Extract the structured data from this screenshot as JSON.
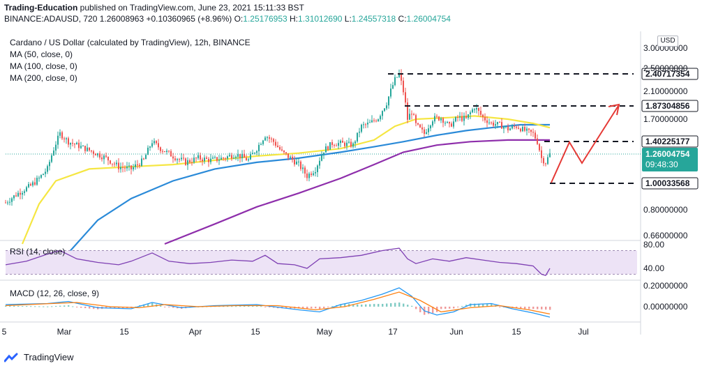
{
  "header": {
    "line1_publisher": "Trading-Education",
    "line1_rest": " published on TradingView.com, June 23, 2021 15:11:33 BST",
    "symbol": "BINANCE:ADAUSD, 720",
    "last": "1.26008963",
    "change": "+0.10360965 (+8.96%)",
    "o_label": "O:",
    "o_value": "1.25176953",
    "h_label": "H:",
    "h_value": "1.31012690",
    "l_label": "L:",
    "l_value": "1.24557318",
    "c_label": "C:",
    "c_value": "1.26004754"
  },
  "legend": {
    "title": "Cardano / US Dollar (calculated by TradingView), 12h, BINANCE",
    "ma50": "MA (50, close, 0)",
    "ma100": "MA (100, close, 0)",
    "ma200": "MA (200, close, 0)",
    "rsi": "RSI (14, close)",
    "macd": "MACD (12, 26, close, 9)"
  },
  "currency": "USD",
  "brand": "TradingView",
  "colors": {
    "up": "#26a69a",
    "down": "#ef5350",
    "ma50": "#f5e642",
    "ma100": "#2a8ad8",
    "ma200": "#8e2eab",
    "arrow": "#e53935",
    "rsi": "#7e3fb3",
    "macd": "#2196f3",
    "signal": "#ff7f0e",
    "price_badge": "#26a69a"
  },
  "chart_data": {
    "type": "candlestick",
    "title": "Cardano / US Dollar (calculated by TradingView), 12h, BINANCE",
    "y_ticks_main": [
      "3.00000000",
      "2.50000000",
      "2.10000000",
      "1.70000000",
      "1.00033568",
      "0.80000000",
      "0.66000000"
    ],
    "y_ticks_rsi": [
      "80.00",
      "40.00"
    ],
    "y_ticks_macd": [
      "0.20000000",
      "0.00000000"
    ],
    "x_ticks": [
      "5",
      "Mar",
      "15",
      "Apr",
      "15",
      "May",
      "17",
      "Jun",
      "15",
      "Jul"
    ],
    "levels": [
      {
        "label": "2.40717354",
        "value": 2.40717354
      },
      {
        "label": "1.87304856",
        "value": 1.87304856
      },
      {
        "label": "1.40225177",
        "value": 1.40225177
      },
      {
        "label": "1.00033568",
        "value": 1.00033568
      }
    ],
    "current_price": {
      "label": "1.26004754",
      "countdown": "09:48:30",
      "value": 1.26004754
    },
    "price_path": [
      [
        0,
        0.85
      ],
      [
        6,
        0.92
      ],
      [
        12,
        0.98
      ],
      [
        16,
        1.04
      ],
      [
        20,
        1.12
      ],
      [
        24,
        1.38
      ],
      [
        26,
        1.5
      ],
      [
        30,
        1.4
      ],
      [
        36,
        1.34
      ],
      [
        42,
        1.28
      ],
      [
        48,
        1.22
      ],
      [
        54,
        1.14
      ],
      [
        60,
        1.12
      ],
      [
        66,
        1.2
      ],
      [
        70,
        1.4
      ],
      [
        74,
        1.32
      ],
      [
        80,
        1.24
      ],
      [
        86,
        1.18
      ],
      [
        92,
        1.22
      ],
      [
        98,
        1.2
      ],
      [
        104,
        1.22
      ],
      [
        110,
        1.26
      ],
      [
        116,
        1.2
      ],
      [
        120,
        1.32
      ],
      [
        124,
        1.48
      ],
      [
        128,
        1.4
      ],
      [
        132,
        1.28
      ],
      [
        136,
        1.22
      ],
      [
        140,
        1.16
      ],
      [
        144,
        1.06
      ],
      [
        148,
        1.12
      ],
      [
        152,
        1.3
      ],
      [
        156,
        1.38
      ],
      [
        160,
        1.38
      ],
      [
        166,
        1.36
      ],
      [
        170,
        1.6
      ],
      [
        174,
        1.64
      ],
      [
        178,
        1.72
      ],
      [
        182,
        1.92
      ],
      [
        186,
        2.3
      ],
      [
        188,
        2.4
      ],
      [
        190,
        2.1
      ],
      [
        192,
        1.7
      ],
      [
        194,
        1.8
      ],
      [
        196,
        1.62
      ],
      [
        200,
        1.5
      ],
      [
        204,
        1.7
      ],
      [
        208,
        1.72
      ],
      [
        212,
        1.6
      ],
      [
        216,
        1.72
      ],
      [
        220,
        1.7
      ],
      [
        224,
        1.86
      ],
      [
        228,
        1.72
      ],
      [
        232,
        1.64
      ],
      [
        236,
        1.62
      ],
      [
        240,
        1.56
      ],
      [
        244,
        1.6
      ],
      [
        248,
        1.54
      ],
      [
        252,
        1.5
      ],
      [
        254,
        1.4
      ],
      [
        256,
        1.22
      ],
      [
        258,
        1.18
      ],
      [
        260,
        1.26
      ]
    ],
    "ma50": [
      [
        8,
        0.62
      ],
      [
        16,
        0.84
      ],
      [
        24,
        1.02
      ],
      [
        40,
        1.12
      ],
      [
        60,
        1.14
      ],
      [
        80,
        1.16
      ],
      [
        100,
        1.2
      ],
      [
        120,
        1.24
      ],
      [
        140,
        1.27
      ],
      [
        160,
        1.32
      ],
      [
        176,
        1.42
      ],
      [
        186,
        1.6
      ],
      [
        196,
        1.7
      ],
      [
        212,
        1.72
      ],
      [
        224,
        1.74
      ],
      [
        240,
        1.7
      ],
      [
        252,
        1.64
      ],
      [
        260,
        1.58
      ]
    ],
    "ma100": [
      [
        30,
        0.58
      ],
      [
        44,
        0.74
      ],
      [
        60,
        0.88
      ],
      [
        80,
        1.02
      ],
      [
        100,
        1.12
      ],
      [
        120,
        1.18
      ],
      [
        140,
        1.22
      ],
      [
        160,
        1.28
      ],
      [
        176,
        1.34
      ],
      [
        190,
        1.4
      ],
      [
        206,
        1.48
      ],
      [
        220,
        1.54
      ],
      [
        232,
        1.58
      ],
      [
        246,
        1.62
      ],
      [
        260,
        1.62
      ]
    ],
    "ma200": [
      [
        76,
        0.62
      ],
      [
        100,
        0.72
      ],
      [
        120,
        0.82
      ],
      [
        140,
        0.92
      ],
      [
        160,
        1.04
      ],
      [
        176,
        1.16
      ],
      [
        190,
        1.28
      ],
      [
        206,
        1.36
      ],
      [
        222,
        1.4
      ],
      [
        240,
        1.42
      ],
      [
        260,
        1.42
      ]
    ],
    "projection": [
      [
        260,
        1.4
      ],
      [
        268,
        1.3
      ],
      [
        276,
        1.46
      ],
      [
        282,
        1.6
      ]
    ],
    "rsi": [
      [
        0,
        46
      ],
      [
        10,
        52
      ],
      [
        20,
        64
      ],
      [
        26,
        70
      ],
      [
        34,
        56
      ],
      [
        44,
        50
      ],
      [
        54,
        46
      ],
      [
        60,
        52
      ],
      [
        70,
        66
      ],
      [
        78,
        52
      ],
      [
        88,
        48
      ],
      [
        98,
        50
      ],
      [
        108,
        54
      ],
      [
        118,
        52
      ],
      [
        124,
        62
      ],
      [
        130,
        48
      ],
      [
        138,
        46
      ],
      [
        144,
        40
      ],
      [
        150,
        56
      ],
      [
        160,
        58
      ],
      [
        170,
        62
      ],
      [
        180,
        70
      ],
      [
        188,
        74
      ],
      [
        192,
        56
      ],
      [
        196,
        48
      ],
      [
        204,
        56
      ],
      [
        212,
        52
      ],
      [
        220,
        58
      ],
      [
        228,
        54
      ],
      [
        236,
        50
      ],
      [
        244,
        48
      ],
      [
        252,
        44
      ],
      [
        256,
        30
      ],
      [
        258,
        28
      ],
      [
        260,
        40
      ]
    ],
    "macd": [
      [
        0,
        0.02
      ],
      [
        20,
        0.03
      ],
      [
        30,
        0.05
      ],
      [
        44,
        -0.01
      ],
      [
        60,
        -0.02
      ],
      [
        70,
        0.04
      ],
      [
        84,
        -0.01
      ],
      [
        100,
        0.01
      ],
      [
        120,
        0.02
      ],
      [
        140,
        -0.03
      ],
      [
        150,
        -0.05
      ],
      [
        160,
        0.02
      ],
      [
        170,
        0.06
      ],
      [
        180,
        0.12
      ],
      [
        188,
        0.18
      ],
      [
        194,
        0.1
      ],
      [
        200,
        -0.04
      ],
      [
        206,
        -0.08
      ],
      [
        214,
        -0.05
      ],
      [
        222,
        0.02
      ],
      [
        232,
        0.03
      ],
      [
        242,
        -0.02
      ],
      [
        252,
        -0.06
      ],
      [
        260,
        -0.1
      ]
    ],
    "signal": [
      [
        0,
        0.01
      ],
      [
        22,
        0.03
      ],
      [
        34,
        0.04
      ],
      [
        50,
        0.0
      ],
      [
        64,
        -0.01
      ],
      [
        76,
        0.02
      ],
      [
        92,
        0.0
      ],
      [
        110,
        0.01
      ],
      [
        130,
        0.01
      ],
      [
        148,
        -0.03
      ],
      [
        162,
        0.0
      ],
      [
        176,
        0.07
      ],
      [
        188,
        0.14
      ],
      [
        198,
        0.06
      ],
      [
        208,
        -0.05
      ],
      [
        222,
        -0.01
      ],
      [
        236,
        0.01
      ],
      [
        250,
        -0.03
      ],
      [
        260,
        -0.07
      ]
    ]
  }
}
